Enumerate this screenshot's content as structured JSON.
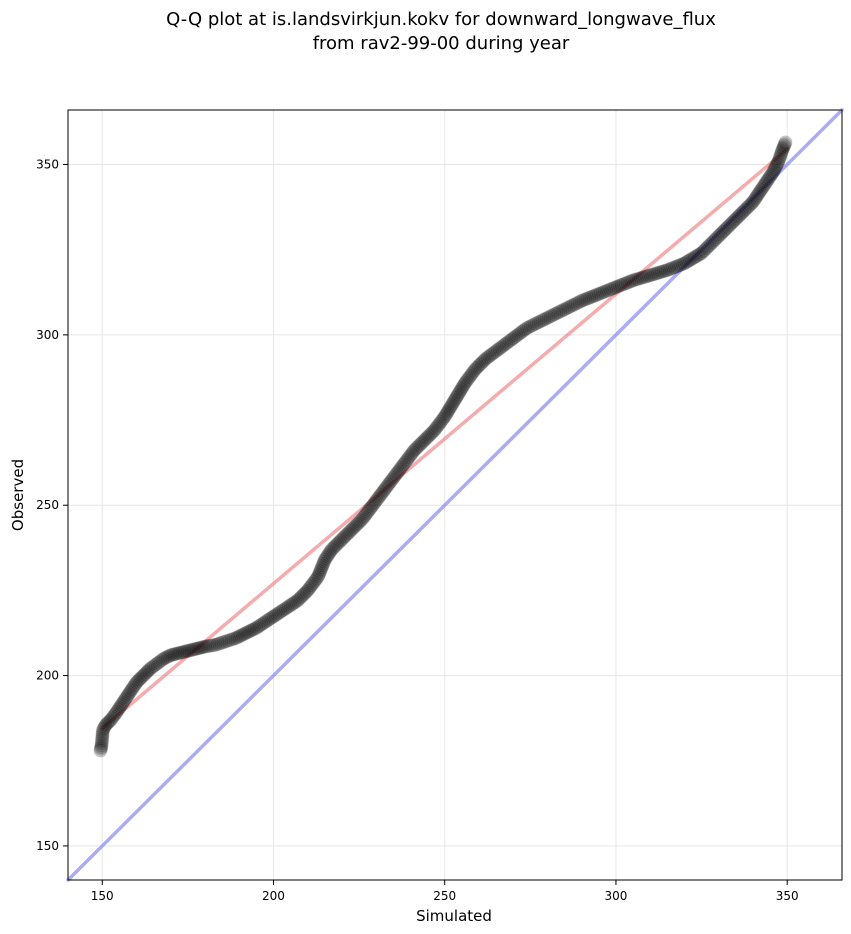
{
  "chart_data": {
    "type": "scatter",
    "title": "Q-Q plot at is.landsvirkjun.kokv for downward_longwave_flux",
    "subtitle": "from rav2-99-00 during year",
    "xlabel": "Simulated",
    "ylabel": "Observed",
    "xlim": [
      140,
      366
    ],
    "ylim": [
      140,
      366
    ],
    "xticks": [
      150,
      200,
      250,
      300,
      350
    ],
    "yticks": [
      150,
      200,
      250,
      300,
      350
    ],
    "grid": true,
    "series": [
      {
        "kind": "scatter",
        "color": "#000000",
        "points": [
          [
            149.5,
            178
          ],
          [
            149.8,
            179.5
          ],
          [
            150.2,
            184
          ],
          [
            151,
            185.5
          ],
          [
            152.5,
            187
          ],
          [
            154,
            189
          ],
          [
            156,
            192
          ],
          [
            158,
            195
          ],
          [
            160,
            198
          ],
          [
            162,
            200
          ],
          [
            164,
            202
          ],
          [
            166,
            203.5
          ],
          [
            168,
            205
          ],
          [
            170,
            206
          ],
          [
            172,
            206.5
          ],
          [
            174,
            207
          ],
          [
            176,
            207.5
          ],
          [
            178,
            208
          ],
          [
            180,
            208.5
          ],
          [
            183,
            209
          ],
          [
            186,
            210
          ],
          [
            189,
            211
          ],
          [
            192,
            212.5
          ],
          [
            195,
            214
          ],
          [
            198,
            216
          ],
          [
            201,
            218
          ],
          [
            204,
            220
          ],
          [
            207,
            222
          ],
          [
            210,
            225
          ],
          [
            213,
            229
          ],
          [
            215,
            234
          ],
          [
            217,
            237
          ],
          [
            220,
            240
          ],
          [
            223,
            243
          ],
          [
            226,
            246
          ],
          [
            229,
            250
          ],
          [
            232,
            254
          ],
          [
            235,
            258
          ],
          [
            238,
            262
          ],
          [
            241,
            266
          ],
          [
            244,
            269
          ],
          [
            247,
            272
          ],
          [
            250,
            276
          ],
          [
            253,
            281
          ],
          [
            256,
            286
          ],
          [
            259,
            290
          ],
          [
            262,
            293
          ],
          [
            266,
            296
          ],
          [
            270,
            299
          ],
          [
            274,
            302
          ],
          [
            278,
            304
          ],
          [
            282,
            306
          ],
          [
            286,
            308
          ],
          [
            290,
            310
          ],
          [
            295,
            312
          ],
          [
            300,
            314
          ],
          [
            305,
            316
          ],
          [
            310,
            317.5
          ],
          [
            315,
            319
          ],
          [
            320,
            321
          ],
          [
            325,
            324
          ],
          [
            330,
            329
          ],
          [
            334,
            333
          ],
          [
            337,
            336
          ],
          [
            340,
            339
          ],
          [
            342,
            342
          ],
          [
            344,
            345
          ],
          [
            346,
            348
          ],
          [
            347.5,
            351
          ],
          [
            348.5,
            354
          ],
          [
            349.5,
            356.5
          ]
        ]
      },
      {
        "kind": "line",
        "name": "",
        "color": "#f08080",
        "points": [
          [
            150,
            184.5
          ],
          [
            350,
            354.5
          ]
        ]
      },
      {
        "kind": "line",
        "name": "",
        "color": "#8080f0",
        "points": [
          [
            140,
            140
          ],
          [
            366,
            366
          ]
        ]
      }
    ]
  }
}
